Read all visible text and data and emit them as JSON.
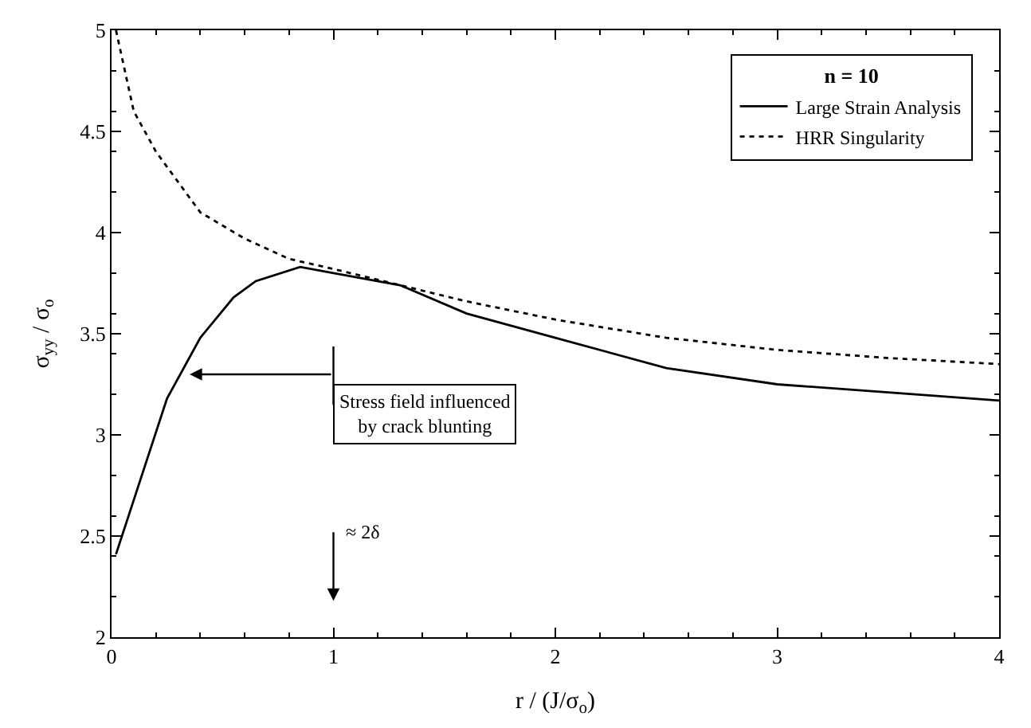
{
  "chart_data": {
    "type": "line",
    "xlabel": "r / (J/σ$_{o}$)",
    "ylabel": "σ$_{yy}$ / σ$_{o}$",
    "legend_title": "n = 10",
    "legend": "top right",
    "grid": false,
    "marker": "none",
    "xlim": [
      0,
      4
    ],
    "xticks": [
      0,
      1,
      2,
      3,
      4
    ],
    "ylim": [
      2,
      5
    ],
    "yticks": [
      2,
      2.5,
      3,
      3.5,
      4,
      4.5,
      5
    ],
    "series": [
      {
        "name": "Large Strain Analysis",
        "color": "#000000",
        "line_style": "solid",
        "x": [
          0.02,
          0.25,
          0.4,
          0.55,
          0.65,
          0.85,
          1.0,
          1.3,
          1.6,
          2.0,
          2.5,
          3.0,
          3.5,
          4.0
        ],
        "values": [
          2.41,
          3.18,
          3.48,
          3.68,
          3.76,
          3.83,
          3.8,
          3.74,
          3.6,
          3.48,
          3.33,
          3.25,
          3.21,
          3.17
        ]
      },
      {
        "name": "HRR Singularity",
        "color": "#000000",
        "line_style": "dotted",
        "x": [
          0.02,
          0.1,
          0.2,
          0.4,
          0.6,
          0.8,
          1.0,
          1.3,
          1.6,
          2.0,
          2.5,
          3.0,
          3.5,
          4.0
        ],
        "values": [
          5.0,
          4.6,
          4.4,
          4.1,
          3.97,
          3.87,
          3.82,
          3.74,
          3.66,
          3.57,
          3.48,
          3.42,
          3.38,
          3.35
        ]
      }
    ],
    "annotations": [
      "Stress field influenced\nby crack blunting",
      "≈ 2δ"
    ]
  }
}
